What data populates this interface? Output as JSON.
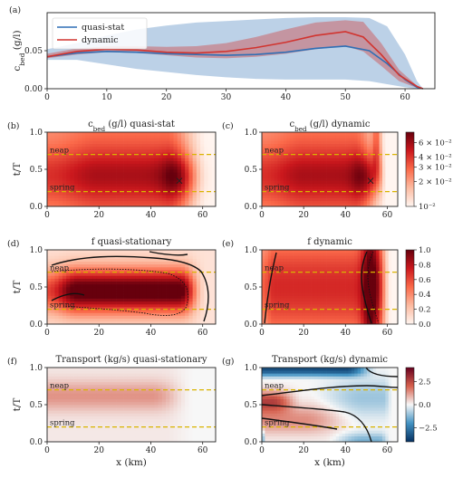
{
  "chart_data": [
    {
      "type": "line",
      "panel": "(a)",
      "title": "",
      "xlabel": "",
      "ylabel": "c_bed (g/l)",
      "xlim": [
        0,
        65
      ],
      "ylim": [
        0,
        0.1
      ],
      "xticks": [
        "0",
        "10",
        "20",
        "30",
        "40",
        "50",
        "60"
      ],
      "yticks": [
        "0.00",
        "0.05"
      ],
      "legend_position": "top-left",
      "series": [
        {
          "name": "quasi-stat",
          "color": "#2f6fb5",
          "x": [
            0,
            5,
            10,
            15,
            20,
            25,
            30,
            35,
            40,
            45,
            50,
            54,
            57,
            60,
            62,
            63
          ],
          "values": [
            0.042,
            0.047,
            0.049,
            0.048,
            0.046,
            0.045,
            0.044,
            0.045,
            0.048,
            0.053,
            0.056,
            0.05,
            0.033,
            0.012,
            0.002,
            0.0
          ],
          "band_upper": [
            0.052,
            0.06,
            0.07,
            0.078,
            0.083,
            0.087,
            0.089,
            0.091,
            0.093,
            0.094,
            0.094,
            0.093,
            0.082,
            0.045,
            0.01,
            0.0
          ],
          "band_lower": [
            0.038,
            0.038,
            0.032,
            0.026,
            0.022,
            0.018,
            0.015,
            0.013,
            0.012,
            0.012,
            0.012,
            0.01,
            0.006,
            0.002,
            0.0,
            0.0
          ]
        },
        {
          "name": "dynamic",
          "color": "#d1342f",
          "x": [
            0,
            5,
            10,
            15,
            20,
            25,
            30,
            35,
            40,
            45,
            50,
            53,
            56,
            59,
            62,
            63
          ],
          "values": [
            0.042,
            0.049,
            0.052,
            0.051,
            0.048,
            0.047,
            0.049,
            0.054,
            0.061,
            0.07,
            0.075,
            0.068,
            0.045,
            0.018,
            0.003,
            0.0
          ],
          "band_upper": [
            0.046,
            0.053,
            0.056,
            0.056,
            0.055,
            0.056,
            0.06,
            0.068,
            0.078,
            0.087,
            0.09,
            0.088,
            0.06,
            0.025,
            0.004,
            0.0
          ],
          "band_lower": [
            0.04,
            0.045,
            0.048,
            0.047,
            0.044,
            0.041,
            0.04,
            0.042,
            0.046,
            0.052,
            0.056,
            0.049,
            0.03,
            0.01,
            0.001,
            0.0
          ]
        }
      ]
    },
    {
      "type": "heatmap",
      "panel": "(b)",
      "title": "c_bed (g/l) quasi-stat",
      "xlabel": "",
      "ylabel": "t/T",
      "xlim": [
        0,
        65
      ],
      "ylim": [
        0,
        1
      ],
      "xticks": [
        "0",
        "20",
        "40",
        "60"
      ],
      "yticks": [
        "0.0",
        "0.5",
        "1.0"
      ],
      "colormap": "Reds",
      "color_scale": "log",
      "reference_lines": [
        {
          "label": "neap",
          "y": 0.7
        },
        {
          "label": "spring",
          "y": 0.2
        }
      ],
      "marker": {
        "symbol": "×",
        "x": 51,
        "y": 0.35
      }
    },
    {
      "type": "heatmap",
      "panel": "(c)",
      "title": "c_bed (g/l) dynamic",
      "xlabel": "",
      "ylabel": "",
      "xlim": [
        0,
        65
      ],
      "ylim": [
        0,
        1
      ],
      "xticks": [
        "0",
        "20",
        "40",
        "60"
      ],
      "yticks": [
        "0.0",
        "0.5",
        "1.0"
      ],
      "colormap": "Reds",
      "color_scale": "log",
      "colorbar_ticks": [
        "6 × 10⁻²",
        "4 × 10⁻²",
        "3 × 10⁻²",
        "2 × 10⁻²",
        "10⁻²"
      ],
      "colorbar_values": [
        0.06,
        0.04,
        0.03,
        0.02,
        0.01
      ],
      "colorbar_range": [
        0.01,
        0.08
      ],
      "reference_lines": [
        {
          "label": "neap",
          "y": 0.7
        },
        {
          "label": "spring",
          "y": 0.2
        }
      ],
      "marker": {
        "symbol": "×",
        "x": 52,
        "y": 0.35
      }
    },
    {
      "type": "heatmap",
      "panel": "(d)",
      "title": "f quasi-stationary",
      "xlabel": "",
      "ylabel": "t/T",
      "xlim": [
        0,
        65
      ],
      "ylim": [
        0,
        1
      ],
      "xticks": [
        "0",
        "20",
        "40",
        "60"
      ],
      "yticks": [
        "0.0",
        "0.5",
        "1.0"
      ],
      "colormap": "Reds",
      "reference_lines": [
        {
          "label": "neap",
          "y": 0.7
        },
        {
          "label": "spring",
          "y": 0.2
        }
      ]
    },
    {
      "type": "heatmap",
      "panel": "(e)",
      "title": "f dynamic",
      "xlabel": "",
      "ylabel": "",
      "xlim": [
        0,
        65
      ],
      "ylim": [
        0,
        1
      ],
      "xticks": [
        "0",
        "20",
        "40",
        "60"
      ],
      "yticks": [
        "0.0",
        "0.5",
        "1.0"
      ],
      "colormap": "Reds",
      "colorbar_ticks": [
        "1.0",
        "0.8",
        "0.6",
        "0.4",
        "0.2",
        "0.0"
      ],
      "colorbar_values": [
        1.0,
        0.8,
        0.6,
        0.4,
        0.2,
        0.0
      ],
      "colorbar_range": [
        0,
        1
      ],
      "reference_lines": [
        {
          "label": "neap",
          "y": 0.7
        },
        {
          "label": "spring",
          "y": 0.2
        }
      ]
    },
    {
      "type": "heatmap",
      "panel": "(f)",
      "title": "Transport (kg/s) quasi-stationary",
      "xlabel": "x (km)",
      "ylabel": "t/T",
      "xlim": [
        0,
        65
      ],
      "ylim": [
        0,
        1
      ],
      "xticks": [
        "0",
        "20",
        "40",
        "60"
      ],
      "yticks": [
        "0.0",
        "0.5",
        "1.0"
      ],
      "colormap": "RdBu",
      "reference_lines": [
        {
          "label": "neap",
          "y": 0.7
        },
        {
          "label": "spring",
          "y": 0.2
        }
      ]
    },
    {
      "type": "heatmap",
      "panel": "(g)",
      "title": "Transport (kg/s) dynamic",
      "xlabel": "x (km)",
      "ylabel": "",
      "xlim": [
        0,
        65
      ],
      "ylim": [
        0,
        1
      ],
      "xticks": [
        "0",
        "20",
        "40",
        "60"
      ],
      "yticks": [
        "0.0",
        "0.5",
        "1.0"
      ],
      "colormap": "RdBu",
      "colorbar_ticks": [
        "2.5",
        "0.0",
        "−2.5"
      ],
      "colorbar_values": [
        2.5,
        0.0,
        -2.5
      ],
      "colorbar_range": [
        -4,
        4
      ],
      "reference_lines": [
        {
          "label": "neap",
          "y": 0.7
        },
        {
          "label": "spring",
          "y": 0.2
        }
      ]
    }
  ]
}
